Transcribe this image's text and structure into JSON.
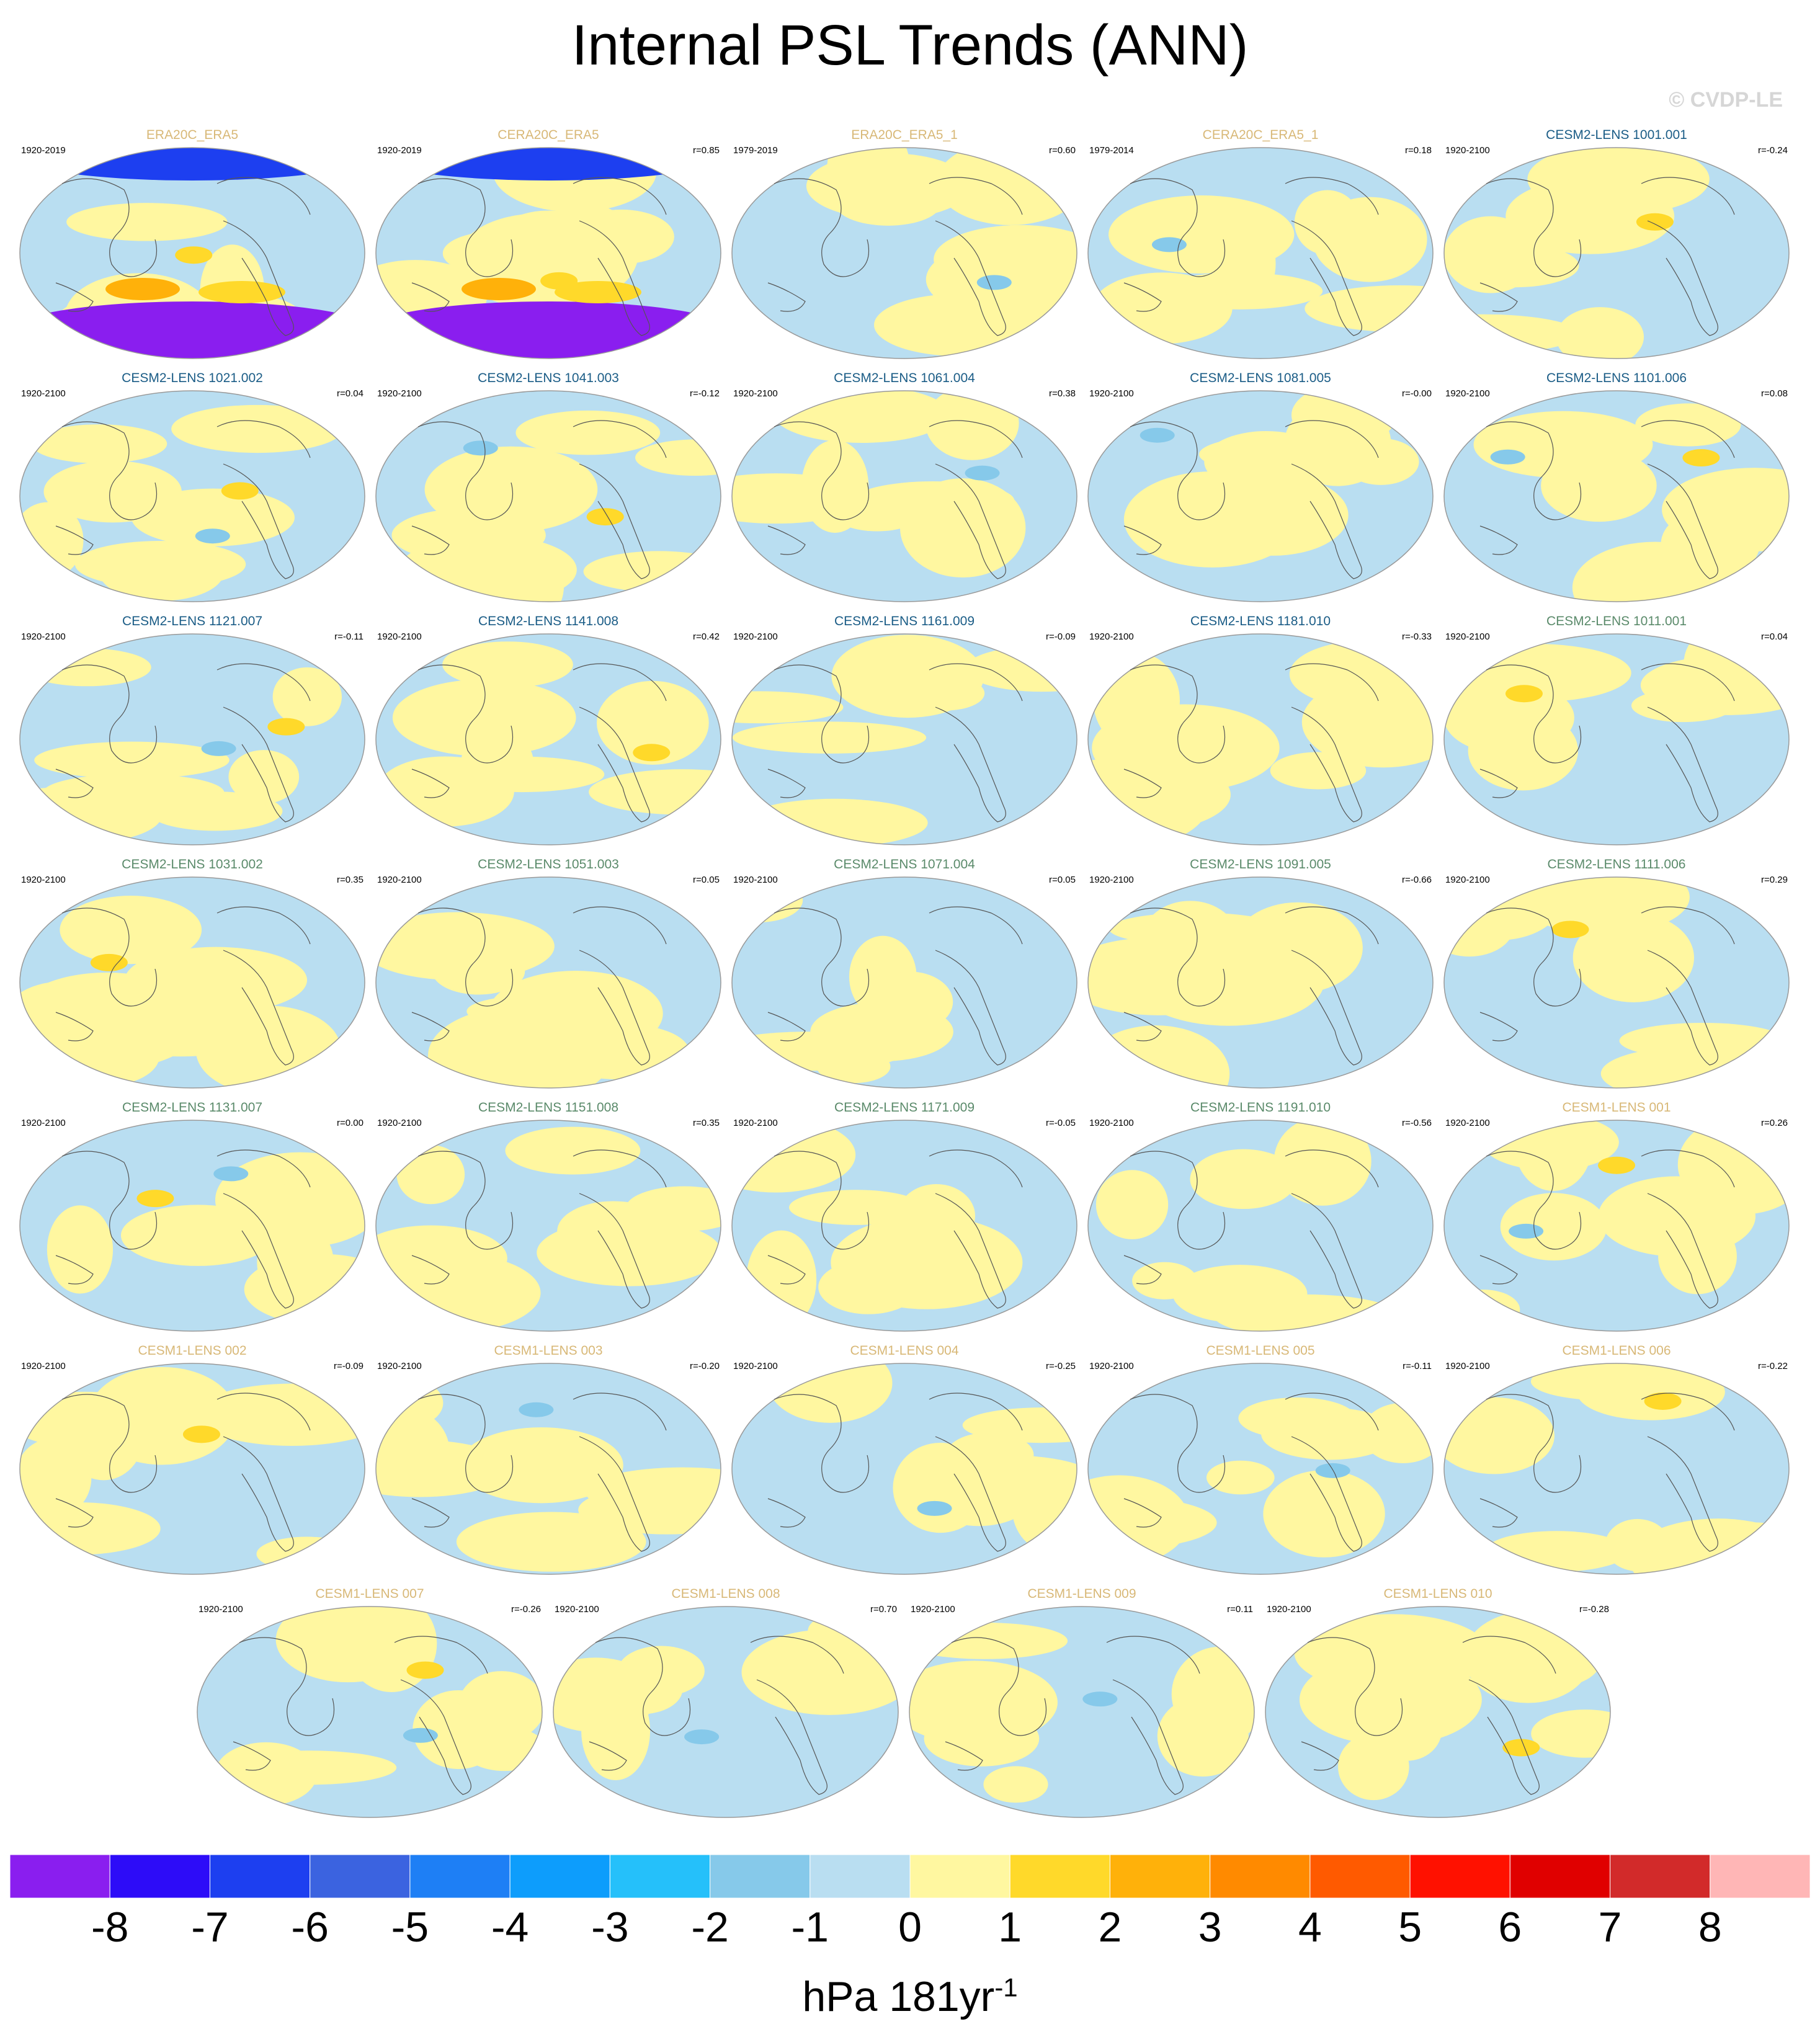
{
  "title": "Internal PSL Trends (ANN)",
  "watermark": "© CVDP-LE",
  "colors": {
    "obs_title": "#d8b877",
    "cesm2_blue_title": "#1a5c86",
    "cesm2_green_title": "#5a8a6a",
    "cesm1_title": "#d8b877",
    "land_outline": "#555555",
    "map_border": "#999999"
  },
  "panels": [
    {
      "title": "ERA20C_ERA5",
      "period": "1920-2019",
      "r": "",
      "group": "obs"
    },
    {
      "title": "CERA20C_ERA5",
      "period": "1920-2019",
      "r": "r=0.85",
      "group": "obs"
    },
    {
      "title": "ERA20C_ERA5_1",
      "period": "1979-2019",
      "r": "r=0.60",
      "group": "obs"
    },
    {
      "title": "CERA20C_ERA5_1",
      "period": "1979-2014",
      "r": "r=0.18",
      "group": "obs"
    },
    {
      "title": "CESM2-LENS 1001.001",
      "period": "1920-2100",
      "r": "r=-0.24",
      "group": "c2b"
    },
    {
      "title": "CESM2-LENS 1021.002",
      "period": "1920-2100",
      "r": "r=0.04",
      "group": "c2b"
    },
    {
      "title": "CESM2-LENS 1041.003",
      "period": "1920-2100",
      "r": "r=-0.12",
      "group": "c2b"
    },
    {
      "title": "CESM2-LENS 1061.004",
      "period": "1920-2100",
      "r": "r=0.38",
      "group": "c2b"
    },
    {
      "title": "CESM2-LENS 1081.005",
      "period": "1920-2100",
      "r": "r=-0.00",
      "group": "c2b"
    },
    {
      "title": "CESM2-LENS 1101.006",
      "period": "1920-2100",
      "r": "r=0.08",
      "group": "c2b"
    },
    {
      "title": "CESM2-LENS 1121.007",
      "period": "1920-2100",
      "r": "r=-0.11",
      "group": "c2b"
    },
    {
      "title": "CESM2-LENS 1141.008",
      "period": "1920-2100",
      "r": "r=0.42",
      "group": "c2b"
    },
    {
      "title": "CESM2-LENS 1161.009",
      "period": "1920-2100",
      "r": "r=-0.09",
      "group": "c2b"
    },
    {
      "title": "CESM2-LENS 1181.010",
      "period": "1920-2100",
      "r": "r=-0.33",
      "group": "c2b"
    },
    {
      "title": "CESM2-LENS 1011.001",
      "period": "1920-2100",
      "r": "r=0.04",
      "group": "c2g"
    },
    {
      "title": "CESM2-LENS 1031.002",
      "period": "1920-2100",
      "r": "r=0.35",
      "group": "c2g"
    },
    {
      "title": "CESM2-LENS 1051.003",
      "period": "1920-2100",
      "r": "r=0.05",
      "group": "c2g"
    },
    {
      "title": "CESM2-LENS 1071.004",
      "period": "1920-2100",
      "r": "r=0.05",
      "group": "c2g"
    },
    {
      "title": "CESM2-LENS 1091.005",
      "period": "1920-2100",
      "r": "r=-0.66",
      "group": "c2g"
    },
    {
      "title": "CESM2-LENS 1111.006",
      "period": "1920-2100",
      "r": "r=0.29",
      "group": "c2g"
    },
    {
      "title": "CESM2-LENS 1131.007",
      "period": "1920-2100",
      "r": "r=0.00",
      "group": "c2g"
    },
    {
      "title": "CESM2-LENS 1151.008",
      "period": "1920-2100",
      "r": "r=0.35",
      "group": "c2g"
    },
    {
      "title": "CESM2-LENS 1171.009",
      "period": "1920-2100",
      "r": "r=-0.05",
      "group": "c2g"
    },
    {
      "title": "CESM2-LENS 1191.010",
      "period": "1920-2100",
      "r": "r=-0.56",
      "group": "c2g"
    },
    {
      "title": "CESM1-LENS 001",
      "period": "1920-2100",
      "r": "r=0.26",
      "group": "c1"
    },
    {
      "title": "CESM1-LENS 002",
      "period": "1920-2100",
      "r": "r=-0.09",
      "group": "c1"
    },
    {
      "title": "CESM1-LENS 003",
      "period": "1920-2100",
      "r": "r=-0.20",
      "group": "c1"
    },
    {
      "title": "CESM1-LENS 004",
      "period": "1920-2100",
      "r": "r=-0.25",
      "group": "c1"
    },
    {
      "title": "CESM1-LENS 005",
      "period": "1920-2100",
      "r": "r=-0.11",
      "group": "c1"
    },
    {
      "title": "CESM1-LENS 006",
      "period": "1920-2100",
      "r": "r=-0.22",
      "group": "c1"
    },
    {
      "title": "CESM1-LENS 007",
      "period": "1920-2100",
      "r": "r=-0.26",
      "group": "c1"
    },
    {
      "title": "CESM1-LENS 008",
      "period": "1920-2100",
      "r": "r=0.70",
      "group": "c1"
    },
    {
      "title": "CESM1-LENS 009",
      "period": "1920-2100",
      "r": "r=0.11",
      "group": "c1"
    },
    {
      "title": "CESM1-LENS 010",
      "period": "1920-2100",
      "r": "r=-0.28",
      "group": "c1"
    }
  ],
  "colorbar": {
    "colors": [
      "#8a1eef",
      "#2d0cf8",
      "#1d3ff0",
      "#3b63e0",
      "#1e7ff5",
      "#0d9dfc",
      "#25c0fa",
      "#86c9ea",
      "#b9def1",
      "#fff7a0",
      "#ffd92a",
      "#ffb10a",
      "#ff8a00",
      "#ff5a00",
      "#ff1100",
      "#e00000",
      "#d22a2a",
      "#ffb6b6"
    ],
    "labels": [
      "-8",
      "-7",
      "-6",
      "-5",
      "-4",
      "-3",
      "-2",
      "-1",
      "0",
      "1",
      "2",
      "3",
      "4",
      "5",
      "6",
      "7",
      "8"
    ]
  },
  "units": "hPa 181yr",
  "units_sup": "-1"
}
